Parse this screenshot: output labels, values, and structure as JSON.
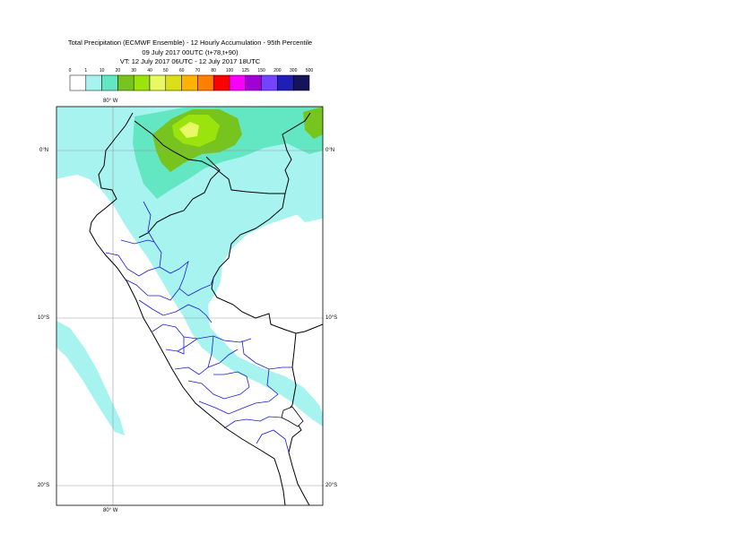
{
  "title": {
    "line1": "Total Precipitation (ECMWF Ensemble) - 12 Hourly Accumulation - 95th Percentile",
    "line2": "09 July 2017 00UTC (t+78,t+90)",
    "line3": "VT: 12 July 2017 06UTC - 12 July 2017 18UTC"
  },
  "legend": {
    "thresholds": [
      "0",
      "1",
      "10",
      "20",
      "30",
      "40",
      "50",
      "60",
      "70",
      "80",
      "100",
      "125",
      "150",
      "200",
      "300",
      "500"
    ],
    "colors": [
      "#ffffff",
      "#a6f3ef",
      "#63e6c2",
      "#78c41e",
      "#9be30d",
      "#e9f866",
      "#dcde19",
      "#ffb300",
      "#ff7f00",
      "#ff0000",
      "#f700f7",
      "#a100d4",
      "#7443ff",
      "#1f1fb6",
      "#14145a"
    ]
  },
  "axes": {
    "lon_top": "80° W",
    "lon_bottom": "80° W",
    "lat_left": [
      "0°N",
      "10°S",
      "20°S"
    ],
    "lat_right": [
      "0°N",
      "10°S",
      "20°S"
    ]
  },
  "colors": {
    "light_precip": "#a6f3ef",
    "medium_precip": "#63e6c2",
    "green_precip": "#78c41e",
    "yellow_green_precip": "#9be30d",
    "yellow_precip": "#e9f866",
    "coastline": "#000000",
    "admin_border": "#1a1ad6",
    "grid": "#9a9a9a"
  }
}
